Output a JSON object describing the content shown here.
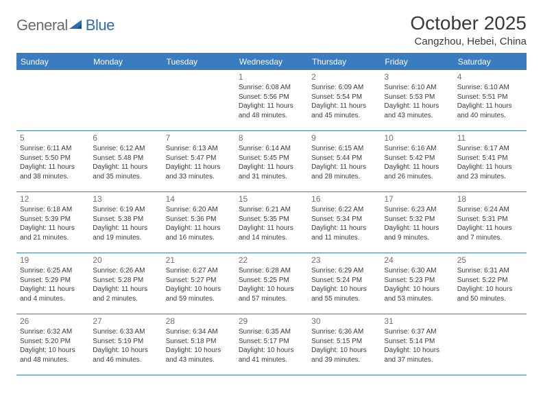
{
  "brand": {
    "general": "General",
    "blue": "Blue"
  },
  "header": {
    "title": "October 2025",
    "location": "Cangzhou, Hebei, China"
  },
  "colors": {
    "accent": "#3b7bbf",
    "body_text": "#3a3a3a",
    "daynum": "#707070",
    "logo_gray": "#6b6b6b",
    "logo_blue": "#2d6db3",
    "background": "#ffffff"
  },
  "dow": [
    "Sunday",
    "Monday",
    "Tuesday",
    "Wednesday",
    "Thursday",
    "Friday",
    "Saturday"
  ],
  "weeks": [
    [
      {
        "n": "",
        "sr": "",
        "ss": "",
        "dl": ""
      },
      {
        "n": "",
        "sr": "",
        "ss": "",
        "dl": ""
      },
      {
        "n": "",
        "sr": "",
        "ss": "",
        "dl": ""
      },
      {
        "n": "1",
        "sr": "6:08 AM",
        "ss": "5:56 PM",
        "dl": "11 hours and 48 minutes."
      },
      {
        "n": "2",
        "sr": "6:09 AM",
        "ss": "5:54 PM",
        "dl": "11 hours and 45 minutes."
      },
      {
        "n": "3",
        "sr": "6:10 AM",
        "ss": "5:53 PM",
        "dl": "11 hours and 43 minutes."
      },
      {
        "n": "4",
        "sr": "6:10 AM",
        "ss": "5:51 PM",
        "dl": "11 hours and 40 minutes."
      }
    ],
    [
      {
        "n": "5",
        "sr": "6:11 AM",
        "ss": "5:50 PM",
        "dl": "11 hours and 38 minutes."
      },
      {
        "n": "6",
        "sr": "6:12 AM",
        "ss": "5:48 PM",
        "dl": "11 hours and 35 minutes."
      },
      {
        "n": "7",
        "sr": "6:13 AM",
        "ss": "5:47 PM",
        "dl": "11 hours and 33 minutes."
      },
      {
        "n": "8",
        "sr": "6:14 AM",
        "ss": "5:45 PM",
        "dl": "11 hours and 31 minutes."
      },
      {
        "n": "9",
        "sr": "6:15 AM",
        "ss": "5:44 PM",
        "dl": "11 hours and 28 minutes."
      },
      {
        "n": "10",
        "sr": "6:16 AM",
        "ss": "5:42 PM",
        "dl": "11 hours and 26 minutes."
      },
      {
        "n": "11",
        "sr": "6:17 AM",
        "ss": "5:41 PM",
        "dl": "11 hours and 23 minutes."
      }
    ],
    [
      {
        "n": "12",
        "sr": "6:18 AM",
        "ss": "5:39 PM",
        "dl": "11 hours and 21 minutes."
      },
      {
        "n": "13",
        "sr": "6:19 AM",
        "ss": "5:38 PM",
        "dl": "11 hours and 19 minutes."
      },
      {
        "n": "14",
        "sr": "6:20 AM",
        "ss": "5:36 PM",
        "dl": "11 hours and 16 minutes."
      },
      {
        "n": "15",
        "sr": "6:21 AM",
        "ss": "5:35 PM",
        "dl": "11 hours and 14 minutes."
      },
      {
        "n": "16",
        "sr": "6:22 AM",
        "ss": "5:34 PM",
        "dl": "11 hours and 11 minutes."
      },
      {
        "n": "17",
        "sr": "6:23 AM",
        "ss": "5:32 PM",
        "dl": "11 hours and 9 minutes."
      },
      {
        "n": "18",
        "sr": "6:24 AM",
        "ss": "5:31 PM",
        "dl": "11 hours and 7 minutes."
      }
    ],
    [
      {
        "n": "19",
        "sr": "6:25 AM",
        "ss": "5:29 PM",
        "dl": "11 hours and 4 minutes."
      },
      {
        "n": "20",
        "sr": "6:26 AM",
        "ss": "5:28 PM",
        "dl": "11 hours and 2 minutes."
      },
      {
        "n": "21",
        "sr": "6:27 AM",
        "ss": "5:27 PM",
        "dl": "10 hours and 59 minutes."
      },
      {
        "n": "22",
        "sr": "6:28 AM",
        "ss": "5:25 PM",
        "dl": "10 hours and 57 minutes."
      },
      {
        "n": "23",
        "sr": "6:29 AM",
        "ss": "5:24 PM",
        "dl": "10 hours and 55 minutes."
      },
      {
        "n": "24",
        "sr": "6:30 AM",
        "ss": "5:23 PM",
        "dl": "10 hours and 53 minutes."
      },
      {
        "n": "25",
        "sr": "6:31 AM",
        "ss": "5:22 PM",
        "dl": "10 hours and 50 minutes."
      }
    ],
    [
      {
        "n": "26",
        "sr": "6:32 AM",
        "ss": "5:20 PM",
        "dl": "10 hours and 48 minutes."
      },
      {
        "n": "27",
        "sr": "6:33 AM",
        "ss": "5:19 PM",
        "dl": "10 hours and 46 minutes."
      },
      {
        "n": "28",
        "sr": "6:34 AM",
        "ss": "5:18 PM",
        "dl": "10 hours and 43 minutes."
      },
      {
        "n": "29",
        "sr": "6:35 AM",
        "ss": "5:17 PM",
        "dl": "10 hours and 41 minutes."
      },
      {
        "n": "30",
        "sr": "6:36 AM",
        "ss": "5:15 PM",
        "dl": "10 hours and 39 minutes."
      },
      {
        "n": "31",
        "sr": "6:37 AM",
        "ss": "5:14 PM",
        "dl": "10 hours and 37 minutes."
      },
      {
        "n": "",
        "sr": "",
        "ss": "",
        "dl": ""
      }
    ]
  ],
  "labels": {
    "sunrise": "Sunrise:",
    "sunset": "Sunset:",
    "daylight": "Daylight:"
  }
}
